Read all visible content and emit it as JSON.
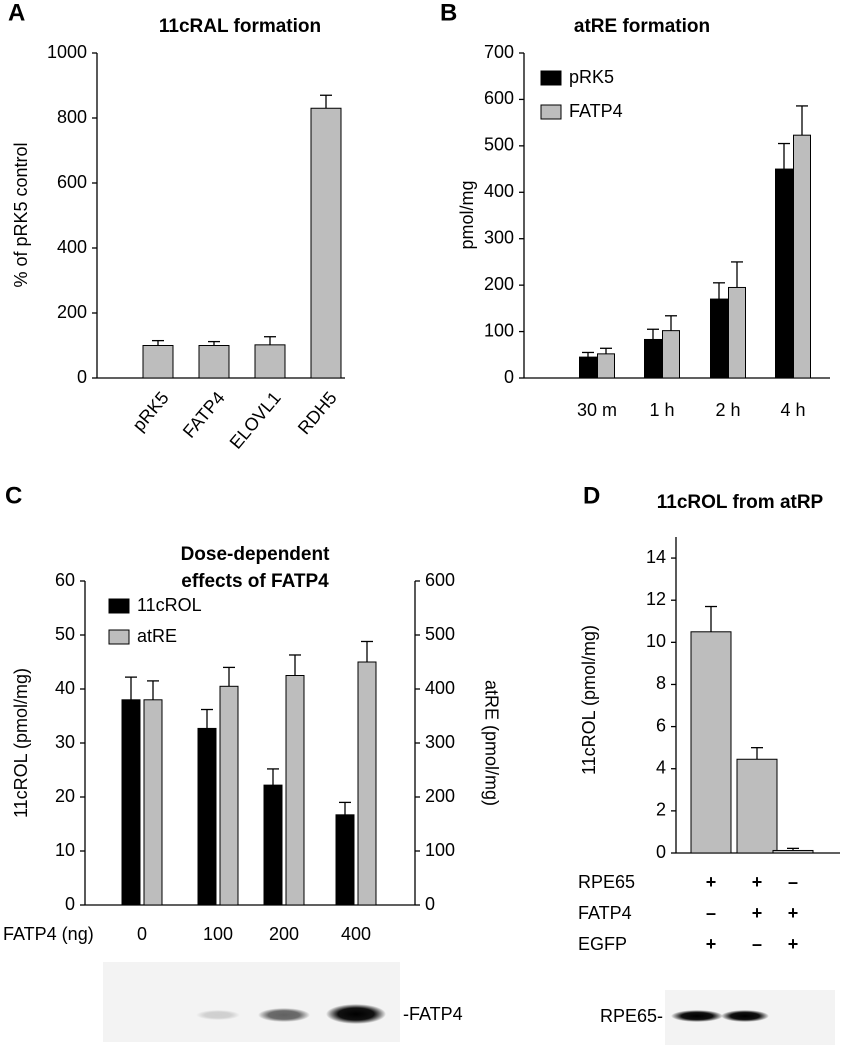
{
  "chart_data": [
    {
      "type": "bar",
      "panel": "A",
      "title": "11cRAL formation",
      "y_label": "% of pRK5 control",
      "categories": [
        "pRK5",
        "FATP4",
        "ELOVL1",
        "RDH5"
      ],
      "values": [
        100,
        100,
        102,
        830
      ],
      "errors": [
        15,
        12,
        25,
        40
      ],
      "color": "#bdbdbd",
      "ylim": [
        0,
        1000
      ],
      "yticks": [
        0,
        200,
        400,
        600,
        800,
        1000
      ]
    },
    {
      "type": "bar",
      "panel": "B",
      "title": "atRE formation",
      "y_label": "pmol/mg",
      "categories": [
        "30 m",
        "1 h",
        "2 h",
        "4 h"
      ],
      "series": [
        {
          "name": "pRK5",
          "color": "#000000",
          "values": [
            45,
            83,
            170,
            450
          ],
          "errors": [
            10,
            22,
            35,
            55
          ]
        },
        {
          "name": "FATP4",
          "color": "#bdbdbd",
          "values": [
            52,
            102,
            195,
            523
          ],
          "errors": [
            12,
            32,
            55,
            63
          ]
        }
      ],
      "ylim": [
        0,
        700
      ],
      "yticks": [
        0,
        100,
        200,
        300,
        400,
        500,
        600,
        700
      ]
    },
    {
      "type": "bar",
      "panel": "C",
      "title": [
        "Dose-dependent",
        "effects of FATP4"
      ],
      "y_label": "11cROL (pmol/mg)",
      "y2_label": "atRE (pmol/mg)",
      "x_label": "FATP4 (ng)",
      "categories": [
        "0",
        "100",
        "200",
        "400"
      ],
      "series": [
        {
          "name": "11cROL",
          "color": "#000000",
          "values": [
            38,
            32.7,
            22.2,
            16.7
          ],
          "errors": [
            4.2,
            3.5,
            3,
            2.3
          ]
        },
        {
          "name": "atRE",
          "color": "#bdbdbd",
          "axis": "y2",
          "values": [
            380,
            405,
            425,
            450
          ],
          "errors": [
            35,
            35,
            38,
            38
          ]
        }
      ],
      "ylim": [
        0,
        60
      ],
      "yticks": [
        0,
        10,
        20,
        30,
        40,
        50,
        60
      ],
      "y2lim": [
        0,
        600
      ],
      "y2ticks": [
        0,
        100,
        200,
        300,
        400,
        500,
        600
      ],
      "blot_label": "-FATP4"
    },
    {
      "type": "bar",
      "panel": "D",
      "title": "11cROL from atRP",
      "y_label": "11cROL (pmol/mg)",
      "values": [
        10.5,
        4.45,
        0.12
      ],
      "errors": [
        1.2,
        0.55,
        0.1
      ],
      "color": "#bdbdbd",
      "conditions": [
        {
          "name": "RPE65",
          "values": [
            "+",
            "+",
            "–"
          ]
        },
        {
          "name": "FATP4",
          "values": [
            "–",
            "+",
            "+"
          ]
        },
        {
          "name": "EGFP",
          "values": [
            "+",
            "–",
            "+"
          ]
        }
      ],
      "ylim": [
        0,
        15
      ],
      "yticks": [
        0,
        2,
        4,
        6,
        8,
        10,
        12,
        14
      ],
      "blot_label": "RPE65-"
    }
  ]
}
